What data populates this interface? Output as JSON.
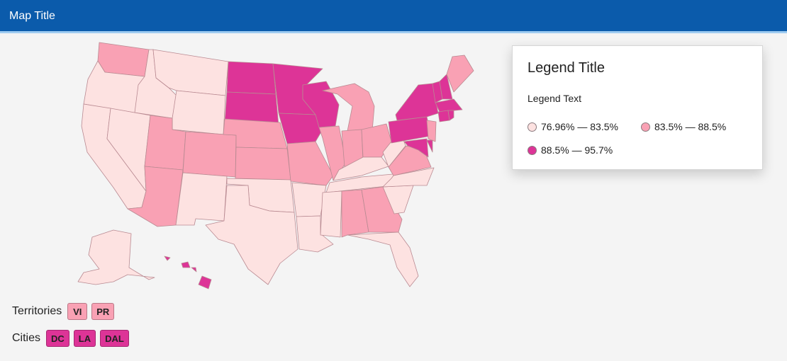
{
  "header": {
    "title": "Map Title"
  },
  "colors": {
    "header_bg": "#0b5bab",
    "low": "#fde2e1",
    "mid": "#f9a1b4",
    "high": "#dd3497"
  },
  "legend": {
    "title": "Legend Title",
    "text": "Legend Text",
    "items": [
      {
        "label": "76.96% — 83.5%",
        "level": "low"
      },
      {
        "label": "83.5% — 88.5%",
        "level": "mid"
      },
      {
        "label": "88.5% — 95.7%",
        "level": "high"
      }
    ]
  },
  "territories": {
    "label": "Territories",
    "items": [
      {
        "label": "VI",
        "level": "mid"
      },
      {
        "label": "PR",
        "level": "mid"
      }
    ]
  },
  "cities": {
    "label": "Cities",
    "items": [
      {
        "label": "DC",
        "level": "high"
      },
      {
        "label": "LA",
        "level": "high"
      },
      {
        "label": "DAL",
        "level": "high"
      }
    ]
  },
  "map": {
    "states": {
      "WA": "mid",
      "OR": "low",
      "CA": "low",
      "ID": "low",
      "NV": "low",
      "MT": "low",
      "WY": "low",
      "UT": "mid",
      "AZ": "mid",
      "CO": "mid",
      "NM": "low",
      "ND": "high",
      "SD": "high",
      "NE": "mid",
      "KS": "mid",
      "OK": "low",
      "TX": "low",
      "MN": "high",
      "IA": "high",
      "MO": "mid",
      "AR": "low",
      "LA": "low",
      "WI": "high",
      "IL": "mid",
      "MI": "mid",
      "IN": "mid",
      "OH": "mid",
      "KY": "low",
      "TN": "low",
      "MS": "low",
      "AL": "mid",
      "GA": "mid",
      "FL": "low",
      "SC": "low",
      "NC": "low",
      "VA": "mid",
      "WV": "low",
      "PA": "high",
      "NY": "high",
      "VT": "high",
      "NH": "high",
      "ME": "mid",
      "MA": "high",
      "CT": "high",
      "RI": "high",
      "NJ": "mid",
      "DE": "high",
      "MD": "high",
      "AK": "low",
      "HI": "high"
    }
  }
}
